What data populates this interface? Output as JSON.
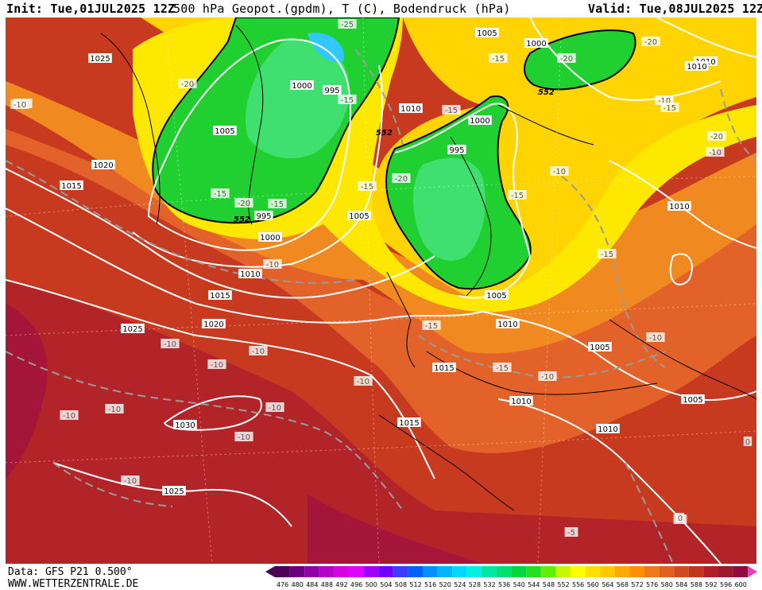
{
  "header": {
    "init": "Init: Tue,01JUL2025 12Z",
    "title": "500 hPa Geopot.(gpdm), T (C), Bodendruck (hPa)",
    "valid": "Valid: Tue,08JUL2025 12Z"
  },
  "footer": {
    "data_source": "Data: GFS P21 0.500°",
    "website": "WWW.WETTERZENTRALE.DE"
  },
  "scale": {
    "values": [
      "476",
      "480",
      "484",
      "488",
      "492",
      "496",
      "500",
      "504",
      "508",
      "512",
      "516",
      "520",
      "524",
      "528",
      "532",
      "536",
      "540",
      "544",
      "548",
      "552",
      "556",
      "560",
      "564",
      "568",
      "572",
      "576",
      "580",
      "584",
      "588",
      "592",
      "596",
      "600"
    ],
    "colors": [
      "#4a0055",
      "#6a0080",
      "#9000a8",
      "#b800c8",
      "#d800e0",
      "#e000ff",
      "#a000ff",
      "#7000ff",
      "#3c3cff",
      "#0060ff",
      "#0090ff",
      "#00b4ff",
      "#00d8ff",
      "#00f0e0",
      "#00e8a0",
      "#00e070",
      "#00d840",
      "#20e020",
      "#60f000",
      "#c8f800",
      "#ffff00",
      "#ffe000",
      "#ffc800",
      "#ffa800",
      "#ff9000",
      "#f07818",
      "#e06020",
      "#d04a20",
      "#c03620",
      "#b02028",
      "#a01830",
      "#900a40"
    ]
  },
  "pressure_labels": [
    "1025",
    "1020",
    "1015",
    "1005",
    "1000",
    "995",
    "1000",
    "995",
    "1000",
    "1005",
    "1010",
    "1005",
    "1010",
    "1010",
    "1015",
    "1020",
    "1025",
    "1030",
    "1025",
    "1015",
    "1015",
    "1010",
    "1010",
    "1005",
    "1005",
    "1010",
    "1005",
    "1000",
    "1010",
    "995",
    "1010"
  ],
  "temp_labels": [
    "-25",
    "-20",
    "-15",
    "-15",
    "-20",
    "-15",
    "-15",
    "-20",
    "-15",
    "-10",
    "-20",
    "-10",
    "-15",
    "-20",
    "-15",
    "-15",
    "-10",
    "-20",
    "-15",
    "-15",
    "-10",
    "-10",
    "-10",
    "-10",
    "-10",
    "-10",
    "-10",
    "-10",
    "-10",
    "-10",
    "-10",
    "-10",
    "-10",
    "-5",
    "-5",
    "0",
    "0",
    "-15",
    "-10"
  ],
  "geopot_labels": [
    "552",
    "552",
    "552"
  ]
}
